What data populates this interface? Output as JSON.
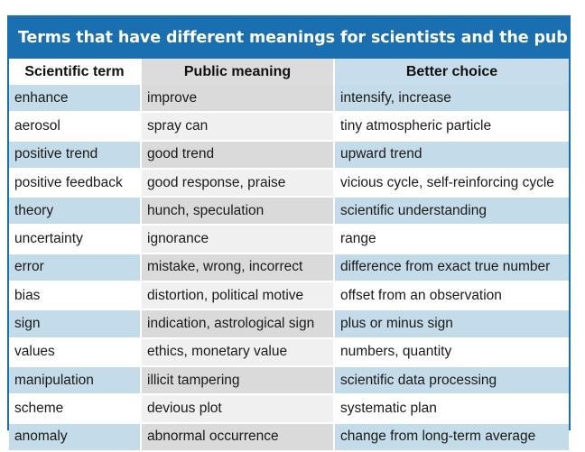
{
  "title": "Terms that have different meanings for scientists and the public",
  "headers": [
    "Scientific term",
    "Public meaning",
    "Better choice"
  ],
  "rows": [
    [
      "enhance",
      "improve",
      "intensify, increase"
    ],
    [
      "aerosol",
      "spray can",
      "tiny atmospheric particle"
    ],
    [
      "positive trend",
      "good trend",
      "upward trend"
    ],
    [
      "positive feedback",
      "good response, praise",
      "vicious cycle, self-reinforcing cycle"
    ],
    [
      "theory",
      "hunch, speculation",
      "scientific understanding"
    ],
    [
      "uncertainty",
      "ignorance",
      "range"
    ],
    [
      "error",
      "mistake, wrong, incorrect",
      "difference from exact true number"
    ],
    [
      "bias",
      "distortion, political motive",
      "offset from an observation"
    ],
    [
      "sign",
      "indication, astrological sign",
      "plus or minus sign"
    ],
    [
      "values",
      "ethics, monetary value",
      "numbers, quantity"
    ],
    [
      "manipulation",
      "illicit tampering",
      "scientific data processing"
    ],
    [
      "scheme",
      "devious plot",
      "systematic plan"
    ],
    [
      "anomaly",
      "abnormal occurrence",
      "change from long-term average"
    ]
  ],
  "colors": {
    "title_bar": "#1a6fb0",
    "row_blue": "#c4dbe9",
    "middle_gray": "#dadada"
  }
}
